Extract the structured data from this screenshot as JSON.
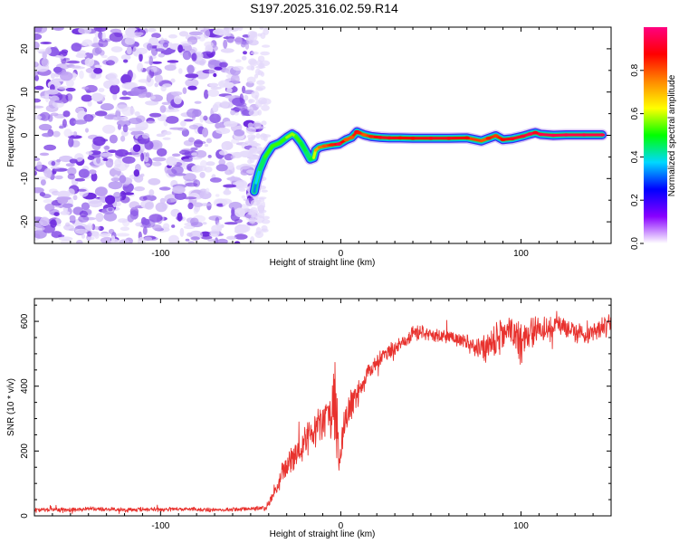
{
  "figure": {
    "title": "S197.2025.316.02.59.R14"
  },
  "chart_data": [
    {
      "type": "heatmap",
      "name": "spectrogram",
      "title": "",
      "xlabel": "Height of straight line (km)",
      "ylabel": "Frequency (Hz)",
      "xlim": [
        -170,
        150
      ],
      "ylim": [
        -25,
        25
      ],
      "xticks": [
        -100,
        0,
        100
      ],
      "yticks": [
        -20,
        -10,
        0,
        10,
        20
      ],
      "noise_region": {
        "x_range": [
          -170,
          -48
        ],
        "y_range": [
          -25,
          25
        ]
      },
      "ridge": {
        "x": [
          -48,
          -47,
          -45,
          -42,
          -38,
          -34,
          -30,
          -27,
          -25,
          -22,
          -19,
          -17,
          -15,
          -14,
          -12,
          -9,
          -5,
          -1,
          3,
          6,
          9,
          10,
          13,
          17,
          22,
          27,
          33,
          40,
          50,
          60,
          70,
          78,
          82,
          86,
          90,
          95,
          101,
          105,
          108,
          111,
          118,
          125,
          135,
          145
        ],
        "y": [
          -13,
          -11,
          -8,
          -5,
          -2.5,
          -1.8,
          -0.5,
          0.3,
          -0.2,
          -1.8,
          -4,
          -5.5,
          -5.2,
          -3.5,
          -2.8,
          -2.5,
          -2.2,
          -2,
          -1,
          -0.5,
          0.8,
          0.6,
          0.1,
          -0.3,
          -0.5,
          -0.6,
          -0.6,
          -0.7,
          -0.7,
          -0.7,
          -0.6,
          -1.3,
          -0.7,
          -0.1,
          -1,
          -0.8,
          -0.2,
          0.3,
          0.6,
          0.2,
          0,
          0.1,
          0.1,
          0.1
        ],
        "amplitude": [
          0.3,
          0.35,
          0.4,
          0.5,
          0.55,
          0.5,
          0.55,
          0.6,
          0.55,
          0.5,
          0.45,
          0.45,
          0.5,
          0.7,
          0.75,
          0.8,
          0.85,
          0.95,
          0.8,
          0.8,
          0.9,
          0.85,
          0.8,
          0.85,
          0.9,
          0.9,
          0.88,
          0.88,
          0.9,
          0.9,
          0.88,
          0.75,
          0.85,
          0.82,
          0.88,
          0.9,
          0.92,
          0.95,
          0.9,
          0.95,
          0.95,
          0.95,
          0.95,
          0.95
        ]
      },
      "colorbar": {
        "label": "Normalized spectral amplitude",
        "range": [
          0,
          1
        ],
        "ticks": [
          "0.0",
          "0.2",
          "0.4",
          "0.6",
          "0.8"
        ],
        "colors": [
          "#ffffff",
          "#8800ff",
          "#0000ff",
          "#00d8ff",
          "#00ff00",
          "#ffff00",
          "#ff8800",
          "#ff0000",
          "#ff0080"
        ]
      }
    },
    {
      "type": "line",
      "name": "snr",
      "title": "",
      "xlabel": "Height of straight line (km)",
      "ylabel": "SNR (10 * v/v)",
      "xlim": [
        -170,
        150
      ],
      "ylim": [
        0,
        670
      ],
      "xticks": [
        -100,
        0,
        100
      ],
      "yticks": [
        0,
        200,
        400,
        600
      ],
      "color": "#e8322e",
      "series": [
        {
          "name": "SNR",
          "x": [
            -170,
            -160,
            -150,
            -140,
            -130,
            -120,
            -110,
            -100,
            -90,
            -80,
            -70,
            -60,
            -50,
            -42,
            -38,
            -35,
            -32,
            -28,
            -24,
            -20,
            -16,
            -12,
            -8,
            -5,
            -3,
            -1,
            2,
            5,
            9,
            13,
            17,
            21,
            25,
            30,
            35,
            40,
            45,
            50,
            55,
            60,
            65,
            70,
            75,
            80,
            85,
            90,
            95,
            100,
            105,
            110,
            115,
            120,
            125,
            130,
            135,
            140,
            145,
            150
          ],
          "y": [
            18,
            20,
            18,
            22,
            20,
            18,
            20,
            19,
            21,
            20,
            19,
            20,
            22,
            25,
            60,
            90,
            140,
            170,
            200,
            230,
            260,
            280,
            300,
            320,
            380,
            150,
            280,
            330,
            370,
            420,
            460,
            480,
            500,
            520,
            540,
            560,
            570,
            560,
            555,
            550,
            545,
            530,
            520,
            510,
            540,
            560,
            570,
            530,
            560,
            580,
            570,
            590,
            580,
            570,
            560,
            575,
            580,
            590
          ],
          "noise": [
            8,
            8,
            8,
            8,
            8,
            8,
            8,
            8,
            8,
            8,
            8,
            8,
            8,
            10,
            25,
            30,
            40,
            45,
            55,
            60,
            65,
            70,
            75,
            90,
            160,
            60,
            70,
            60,
            50,
            40,
            40,
            35,
            30,
            30,
            30,
            30,
            28,
            25,
            25,
            25,
            25,
            30,
            40,
            50,
            60,
            60,
            60,
            70,
            60,
            50,
            45,
            45,
            40,
            40,
            40,
            40,
            40,
            40
          ]
        }
      ]
    }
  ]
}
